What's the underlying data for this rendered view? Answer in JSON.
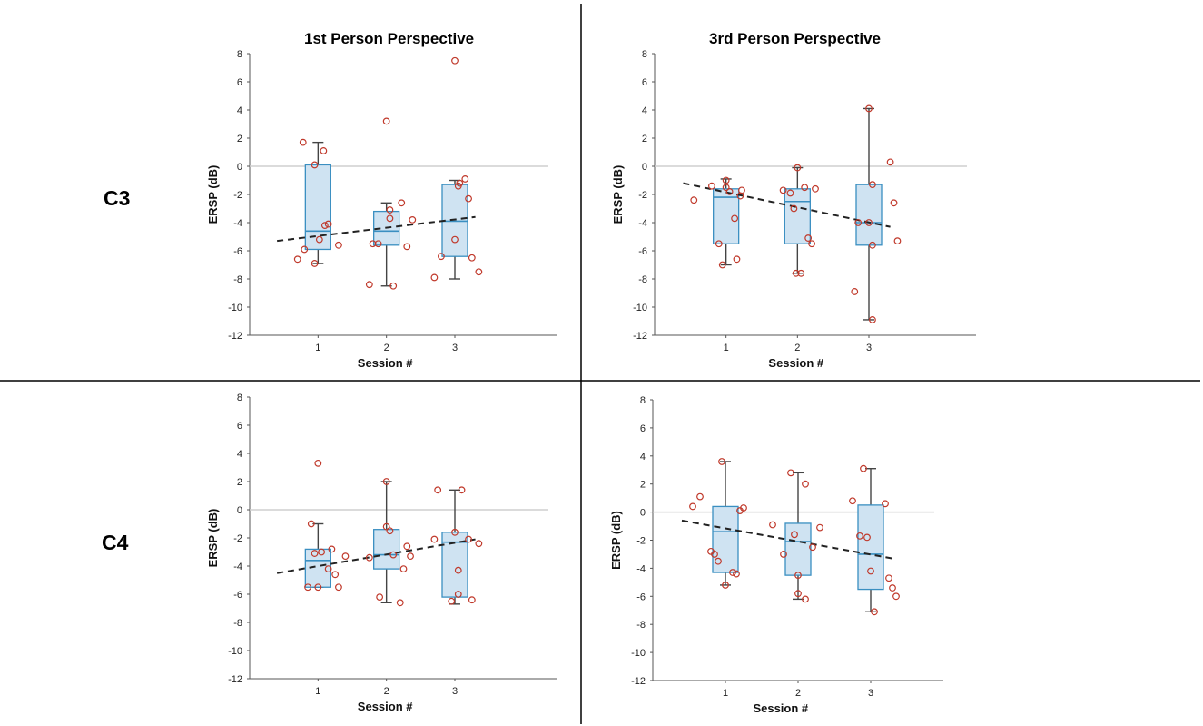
{
  "figure": {
    "rows": [
      "C3",
      "C4"
    ],
    "columns": [
      "1st Person Perspective",
      "3rd Person Perspective"
    ]
  },
  "colors": {
    "box_fill": "#cfe3f2",
    "box_edge": "#3a8fc1",
    "point": "#c0392b",
    "whisker": "#444444",
    "trend": "#222222",
    "zero_line": "#cfcfcf",
    "divider": "#000000"
  },
  "chart_data": [
    {
      "id": "c3-1st",
      "type": "box",
      "title": "1st Person Perspective",
      "row": "C3",
      "xlabel": "Session #",
      "ylabel": "ERSP (dB)",
      "ylim": [
        -12,
        8
      ],
      "yticks": [
        8,
        6,
        4,
        2,
        0,
        -2,
        -4,
        -6,
        -8,
        -10,
        -12
      ],
      "categories": [
        "1",
        "2",
        "3"
      ],
      "boxes": [
        {
          "q1": -5.9,
          "median": -4.6,
          "q3": 0.1,
          "wlow": -6.9,
          "whigh": 1.7
        },
        {
          "q1": -5.6,
          "median": -4.6,
          "q3": -3.2,
          "wlow": -8.5,
          "whigh": -2.6
        },
        {
          "q1": -6.4,
          "median": -3.9,
          "q3": -1.3,
          "wlow": -8.0,
          "whigh": -1.0
        }
      ],
      "points": [
        [
          [
            -0.3,
            -6.6
          ],
          [
            -0.2,
            -5.9
          ],
          [
            -0.22,
            1.7
          ],
          [
            -0.05,
            0.1
          ],
          [
            0.02,
            -5.2
          ],
          [
            0.08,
            1.1
          ],
          [
            0.1,
            -4.2
          ],
          [
            0.15,
            -4.1
          ],
          [
            0.3,
            -5.6
          ],
          [
            -0.05,
            -6.9
          ]
        ],
        [
          [
            -0.25,
            -8.4
          ],
          [
            -0.2,
            -5.5
          ],
          [
            -0.12,
            -5.5
          ],
          [
            0.0,
            3.2
          ],
          [
            0.05,
            -3.7
          ],
          [
            0.05,
            -3.1
          ],
          [
            0.1,
            -8.5
          ],
          [
            0.22,
            -2.6
          ],
          [
            0.3,
            -5.7
          ],
          [
            0.38,
            -3.8
          ]
        ],
        [
          [
            -0.3,
            -7.9
          ],
          [
            -0.2,
            -6.4
          ],
          [
            0.0,
            7.5
          ],
          [
            0.0,
            -5.2
          ],
          [
            0.05,
            -1.4
          ],
          [
            0.07,
            -1.2
          ],
          [
            0.15,
            -0.9
          ],
          [
            0.2,
            -2.3
          ],
          [
            0.25,
            -6.5
          ],
          [
            0.35,
            -7.5
          ]
        ]
      ],
      "trend": {
        "x0": 0.4,
        "y0": -5.3,
        "x1": 3.3,
        "y1": -3.6
      }
    },
    {
      "id": "c3-3rd",
      "type": "box",
      "title": "3rd Person Perspective",
      "row": "C3",
      "xlabel": "Session #",
      "ylabel": "ERSP (dB)",
      "ylim": [
        -12,
        8
      ],
      "yticks": [
        8,
        6,
        4,
        2,
        0,
        -2,
        -4,
        -6,
        -8,
        -10,
        -12
      ],
      "categories": [
        "1",
        "2",
        "3"
      ],
      "boxes": [
        {
          "q1": -5.5,
          "median": -2.2,
          "q3": -1.6,
          "wlow": -7.0,
          "whigh": -0.9
        },
        {
          "q1": -5.5,
          "median": -2.5,
          "q3": -1.6,
          "wlow": -7.6,
          "whigh": -0.1
        },
        {
          "q1": -5.6,
          "median": -4.0,
          "q3": -1.3,
          "wlow": -10.9,
          "whigh": 4.1
        }
      ],
      "points": [
        [
          [
            -0.45,
            -2.4
          ],
          [
            -0.2,
            -1.4
          ],
          [
            -0.1,
            -5.5
          ],
          [
            -0.05,
            -7.0
          ],
          [
            0.0,
            -1.5
          ],
          [
            0.0,
            -1.0
          ],
          [
            0.05,
            -1.8
          ],
          [
            0.12,
            -3.7
          ],
          [
            0.15,
            -6.6
          ],
          [
            0.2,
            -2.1
          ],
          [
            0.22,
            -1.7
          ]
        ],
        [
          [
            -0.2,
            -1.7
          ],
          [
            -0.1,
            -1.9
          ],
          [
            -0.05,
            -3.0
          ],
          [
            -0.02,
            -7.6
          ],
          [
            0.0,
            -0.1
          ],
          [
            0.05,
            -7.6
          ],
          [
            0.1,
            -1.5
          ],
          [
            0.15,
            -5.1
          ],
          [
            0.2,
            -5.5
          ],
          [
            0.25,
            -1.6
          ]
        ],
        [
          [
            -0.2,
            -8.9
          ],
          [
            -0.15,
            -4.0
          ],
          [
            0.0,
            4.1
          ],
          [
            0.0,
            -4.0
          ],
          [
            0.05,
            -5.6
          ],
          [
            0.05,
            -1.3
          ],
          [
            0.05,
            -10.9
          ],
          [
            0.3,
            0.3
          ],
          [
            0.35,
            -2.6
          ],
          [
            0.4,
            -5.3
          ]
        ]
      ],
      "trend": {
        "x0": 0.4,
        "y0": -1.2,
        "x1": 3.3,
        "y1": -4.3
      }
    },
    {
      "id": "c4-1st",
      "type": "box",
      "title": "",
      "row": "C4",
      "xlabel": "Session #",
      "ylabel": "ERSP (dB)",
      "ylim": [
        -12,
        8
      ],
      "yticks": [
        8,
        6,
        4,
        2,
        0,
        -2,
        -4,
        -6,
        -8,
        -10,
        -12
      ],
      "categories": [
        "1",
        "2",
        "3"
      ],
      "boxes": [
        {
          "q1": -5.5,
          "median": -3.6,
          "q3": -2.8,
          "wlow": -5.5,
          "whigh": -1.0
        },
        {
          "q1": -4.2,
          "median": -3.2,
          "q3": -1.4,
          "wlow": -6.6,
          "whigh": 2.0
        },
        {
          "q1": -6.2,
          "median": -2.3,
          "q3": -1.6,
          "wlow": -6.7,
          "whigh": 1.4
        }
      ],
      "points": [
        [
          [
            -0.15,
            -5.5
          ],
          [
            -0.1,
            -1.0
          ],
          [
            -0.05,
            -3.1
          ],
          [
            0.0,
            3.3
          ],
          [
            0.0,
            -5.5
          ],
          [
            0.05,
            -3.0
          ],
          [
            0.15,
            -4.2
          ],
          [
            0.2,
            -2.8
          ],
          [
            0.25,
            -4.6
          ],
          [
            0.3,
            -5.5
          ],
          [
            0.4,
            -3.3
          ]
        ],
        [
          [
            -0.25,
            -3.4
          ],
          [
            -0.1,
            -6.2
          ],
          [
            0.0,
            2.0
          ],
          [
            0.0,
            -1.2
          ],
          [
            0.05,
            -1.5
          ],
          [
            0.1,
            -3.2
          ],
          [
            0.2,
            -6.6
          ],
          [
            0.25,
            -4.2
          ],
          [
            0.3,
            -2.6
          ],
          [
            0.35,
            -3.3
          ]
        ],
        [
          [
            -0.3,
            -2.1
          ],
          [
            -0.25,
            1.4
          ],
          [
            -0.05,
            -6.5
          ],
          [
            0.0,
            -1.6
          ],
          [
            0.05,
            -4.3
          ],
          [
            0.05,
            -6.0
          ],
          [
            0.1,
            1.4
          ],
          [
            0.2,
            -2.1
          ],
          [
            0.25,
            -6.4
          ],
          [
            0.35,
            -2.4
          ]
        ]
      ],
      "trend": {
        "x0": 0.4,
        "y0": -4.5,
        "x1": 3.3,
        "y1": -2.1
      }
    },
    {
      "id": "c4-3rd",
      "type": "box",
      "title": "",
      "row": "C4",
      "xlabel": "Session #",
      "ylabel": "ERSP (dB)",
      "ylim": [
        -12,
        8
      ],
      "yticks": [
        8,
        6,
        4,
        2,
        0,
        -2,
        -4,
        -6,
        -8,
        -10,
        -12
      ],
      "categories": [
        "1",
        "2",
        "3"
      ],
      "boxes": [
        {
          "q1": -4.3,
          "median": -1.4,
          "q3": 0.4,
          "wlow": -5.2,
          "whigh": 3.6
        },
        {
          "q1": -4.5,
          "median": -2.1,
          "q3": -0.8,
          "wlow": -6.2,
          "whigh": 2.8
        },
        {
          "q1": -5.5,
          "median": -3.0,
          "q3": 0.5,
          "wlow": -7.1,
          "whigh": 3.1
        }
      ],
      "points": [
        [
          [
            -0.45,
            0.4
          ],
          [
            -0.35,
            1.1
          ],
          [
            -0.2,
            -2.8
          ],
          [
            -0.15,
            -3.0
          ],
          [
            -0.1,
            -3.5
          ],
          [
            -0.05,
            3.6
          ],
          [
            0.0,
            -5.2
          ],
          [
            0.1,
            -4.3
          ],
          [
            0.15,
            -4.4
          ],
          [
            0.2,
            0.1
          ],
          [
            0.25,
            0.3
          ]
        ],
        [
          [
            -0.35,
            -0.9
          ],
          [
            -0.2,
            -3.0
          ],
          [
            -0.1,
            2.8
          ],
          [
            -0.05,
            -1.6
          ],
          [
            0.0,
            -4.5
          ],
          [
            0.0,
            -5.8
          ],
          [
            0.1,
            -6.2
          ],
          [
            0.1,
            2.0
          ],
          [
            0.2,
            -2.5
          ],
          [
            0.3,
            -1.1
          ]
        ],
        [
          [
            -0.25,
            0.8
          ],
          [
            -0.15,
            -1.7
          ],
          [
            -0.1,
            3.1
          ],
          [
            -0.05,
            -1.8
          ],
          [
            0.0,
            -4.2
          ],
          [
            0.05,
            -7.1
          ],
          [
            0.2,
            0.6
          ],
          [
            0.25,
            -4.7
          ],
          [
            0.3,
            -5.4
          ],
          [
            0.35,
            -6.0
          ]
        ]
      ],
      "trend": {
        "x0": 0.4,
        "y0": -0.6,
        "x1": 3.3,
        "y1": -3.3
      }
    }
  ]
}
